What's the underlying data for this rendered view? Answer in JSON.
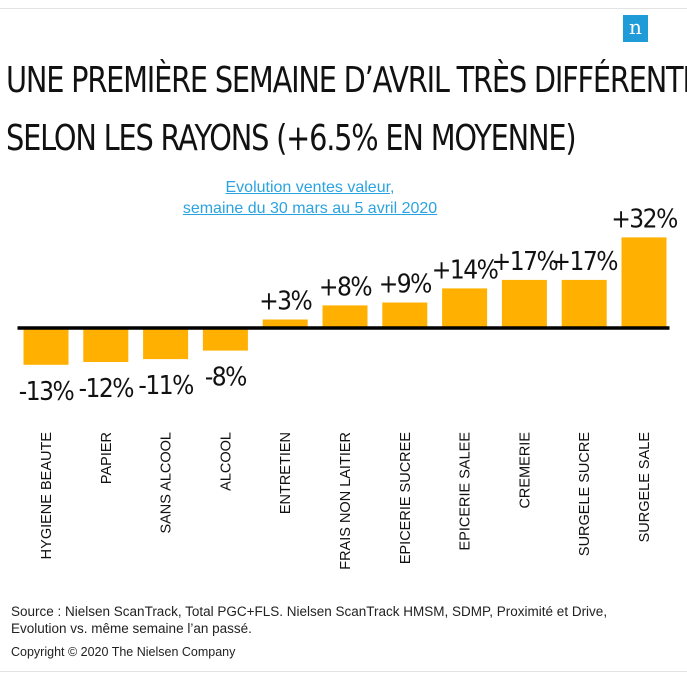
{
  "brand": {
    "logo_letter": "n",
    "logo_color": "#1f9bd7"
  },
  "title_lines": [
    "UNE PREMIÈRE SEMAINE D’AVRIL TRÈS DIFFÉRENTE",
    "SELON LES RAYONS (+6.5% EN MOYENNE)"
  ],
  "subtitle_lines": [
    "Evolution ventes valeur,",
    "semaine du 30 mars au 5 avril 2020"
  ],
  "source_lines": [
    "Source : Nielsen ScanTrack, Total PGC+FLS. Nielsen ScanTrack HMSM, SDMP, Proximité et Drive,",
    "Evolution vs. même semaine l’an passé."
  ],
  "copyright": "Copyright © 2020 The Nielsen Company",
  "chart_data": {
    "type": "bar",
    "title": "Evolution ventes valeur, semaine du 30 mars au 5 avril 2020",
    "categories": [
      "HYGIENE BEAUTE",
      "PAPIER",
      "SANS ALCOOL",
      "ALCOOL",
      "ENTRETIEN",
      "FRAIS NON LAITIER",
      "EPICERIE SUCREE",
      "EPICERIE SALEE",
      "CREMERIE",
      "SURGELE SUCRE",
      "SURGELE SALE"
    ],
    "values": [
      -13,
      -12,
      -11,
      -8,
      3,
      8,
      9,
      14,
      17,
      17,
      32
    ],
    "value_labels": [
      "-13%",
      "-12%",
      "-11%",
      "-8%",
      "+3%",
      "+8%",
      "+9%",
      "+14%",
      "+17%",
      "+17%",
      "+32%"
    ],
    "unit": "%",
    "bar_color": "#ffb000",
    "baseline_color": "#000000",
    "grid": false,
    "legend": "none"
  }
}
